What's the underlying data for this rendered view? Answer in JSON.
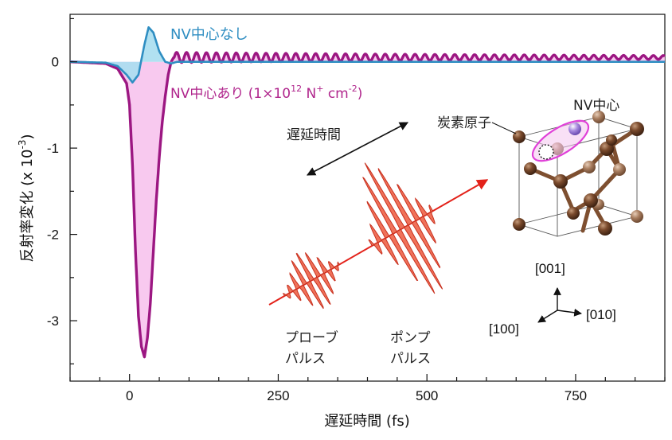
{
  "chart_data": {
    "type": "line",
    "xlabel": "遅延時間 (fs)",
    "ylabel": "反射率変化 (x 10",
    "ylabel_sup": "-3",
    "ylabel_close": ")",
    "xlim": [
      -100,
      900
    ],
    "ylim": [
      -3.7,
      0.55
    ],
    "x_ticks": [
      0,
      250,
      500,
      750
    ],
    "x_tick_labels": [
      "0",
      "250",
      "500",
      "750"
    ],
    "y_ticks": [
      0,
      -1,
      -2,
      -3
    ],
    "y_tick_labels": [
      "0",
      "-1",
      "-2",
      "-3"
    ],
    "series": [
      {
        "name": "NV中心なし",
        "color": "#2f8ec2",
        "fill": "#a8def0",
        "x": [
          -100,
          -40,
          -20,
          -5,
          5,
          15,
          25,
          32,
          40,
          50,
          60,
          70,
          80,
          100,
          300,
          600,
          900
        ],
        "y": [
          0,
          -0.01,
          -0.05,
          -0.15,
          -0.24,
          -0.15,
          0.2,
          0.4,
          0.34,
          0.12,
          0.0,
          -0.02,
          0.0,
          0.0,
          0.0,
          0.0,
          0.0
        ]
      },
      {
        "name": "NV中心あり (1×10",
        "name_sup": "12",
        "name_mid": " N",
        "name_sup2": "+",
        "name_end": " cm",
        "name_sup3": "-2",
        "name_close": ")",
        "color": "#9c1782",
        "fill": "#f7c0ec",
        "x": [
          -100,
          -40,
          -20,
          -5,
          0,
          5,
          10,
          15,
          20,
          25,
          30,
          35,
          40,
          45,
          50,
          55,
          60,
          65,
          70,
          75,
          80
        ],
        "y": [
          0,
          -0.02,
          -0.08,
          -0.25,
          -0.5,
          -1.2,
          -2.2,
          -2.95,
          -3.3,
          -3.42,
          -3.2,
          -2.8,
          -2.2,
          -1.6,
          -1.1,
          -0.7,
          -0.4,
          -0.15,
          0.0,
          0.06,
          0.02
        ],
        "oscillation": {
          "start": 75,
          "end": 900,
          "period": 16.7,
          "amplitude": 0.06,
          "offset": 0.05,
          "decay": 0.0012
        }
      }
    ],
    "grid": false
  },
  "annotations": {
    "label_no_nv": "NV中心なし",
    "label_delay": "遅延時間",
    "label_carbon": "炭素原子",
    "label_nv": "NV中心",
    "probe_line1": "プローブ",
    "probe_line2": "パルス",
    "pump_line1": "ポンプ",
    "pump_line2": "パルス",
    "dir_001": "[001]",
    "dir_010": "[010]",
    "dir_100": "[100]"
  },
  "colors": {
    "pulse": "#e8412c",
    "pulse_fill": "#f0725a",
    "beam": "#e3221a",
    "bond": "#8a5a3a",
    "atom_dark": "#6b3f24",
    "atom_light": "#a77c5e",
    "nv_ring": "#e040d8",
    "nv_atom": "#9a7dd8"
  }
}
